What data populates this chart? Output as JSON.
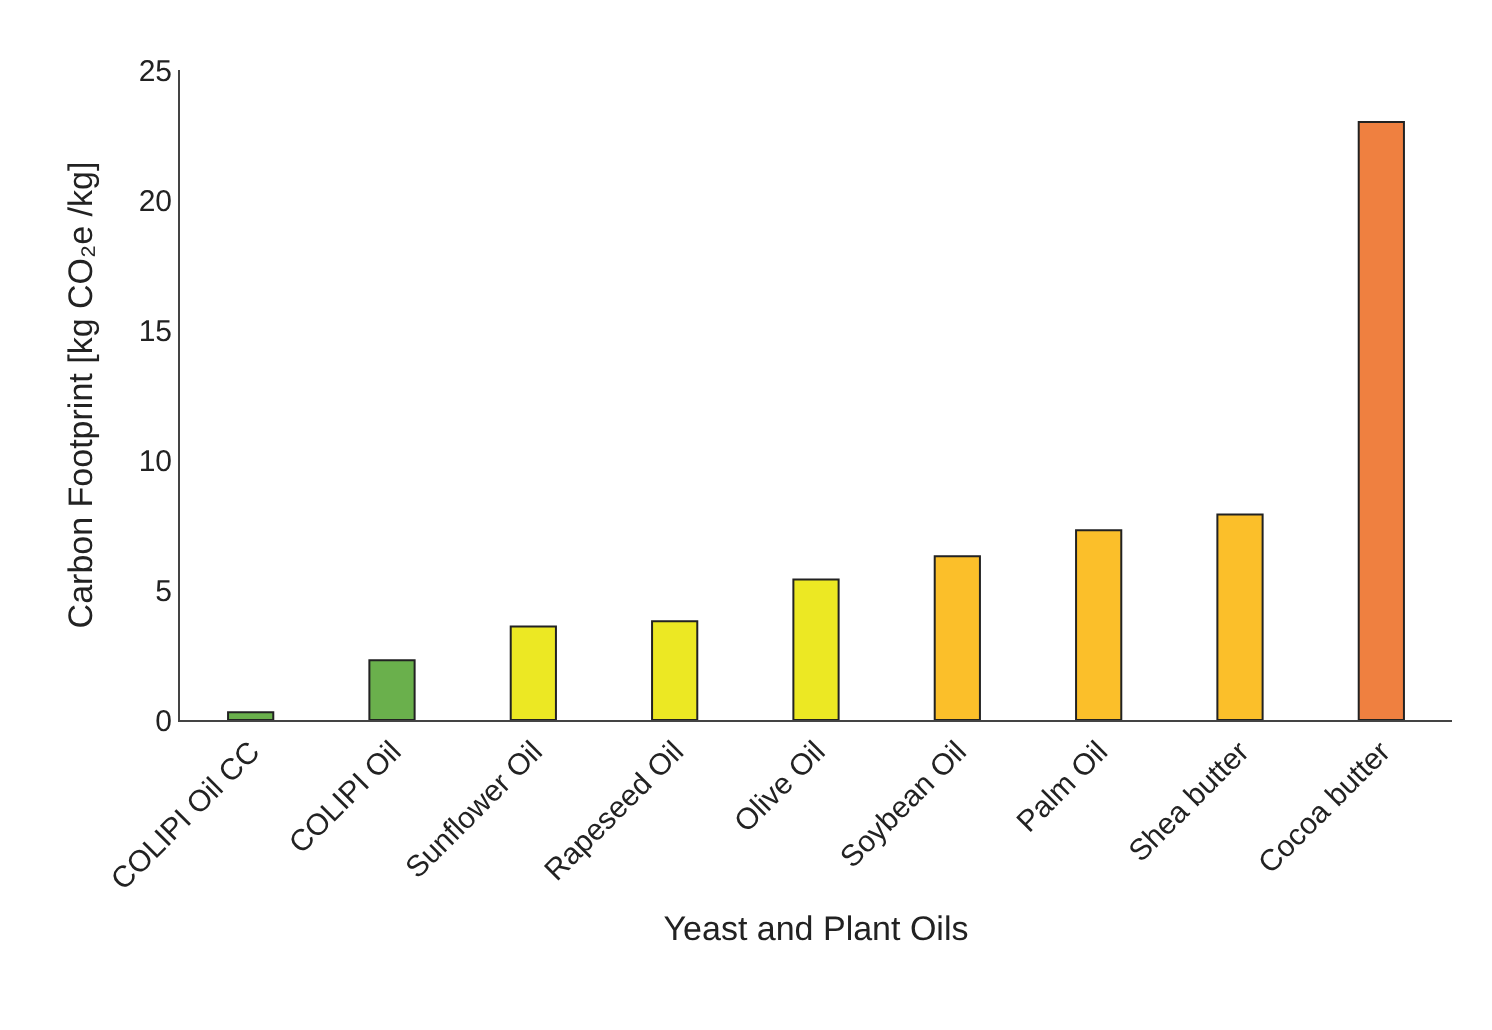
{
  "chart_data": {
    "type": "bar",
    "xlabel": "Yeast and Plant Oils",
    "ylabel": "Carbon Footprint [kg CO₂e /kg]",
    "categories": [
      "COLIPI Oil CC",
      "COLIPI Oil",
      "Sunflower Oil",
      "Rapeseed Oil",
      "Olive Oil",
      "Soybean Oil",
      "Palm Oil",
      "Shea butter",
      "Cocoa butter"
    ],
    "values": [
      0.3,
      2.3,
      3.6,
      3.8,
      5.4,
      6.3,
      7.3,
      7.9,
      23.0
    ],
    "colors": [
      "#6ab04c",
      "#6ab04c",
      "#ece823",
      "#ece823",
      "#ece823",
      "#fbbf2a",
      "#fbbf2a",
      "#fbbf2a",
      "#ef8040"
    ],
    "ylim": [
      0,
      25
    ],
    "yticks": [
      0,
      5,
      10,
      15,
      20,
      25
    ],
    "grid": false
  }
}
